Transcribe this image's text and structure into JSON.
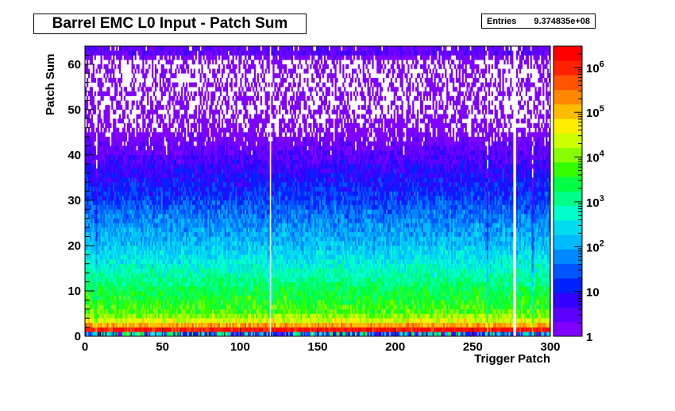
{
  "title": "Barrel EMC L0 Input - Patch Sum",
  "stats": {
    "label": "Entries",
    "value": "9.374835e+08"
  },
  "footer": "",
  "chart_data": {
    "type": "heatmap",
    "title": "Barrel EMC L0 Input - Patch Sum",
    "xlabel": "Trigger Patch",
    "ylabel": "Patch Sum",
    "xlim": [
      0,
      300
    ],
    "ylim": [
      0,
      64
    ],
    "x_ticks": [
      0,
      50,
      100,
      150,
      200,
      250,
      300
    ],
    "y_ticks": [
      0,
      10,
      20,
      30,
      40,
      50,
      60
    ],
    "z_scale": "log",
    "zlim": [
      1,
      3000000
    ],
    "z_ticks": [
      {
        "value": 1,
        "label": "1"
      },
      {
        "value": 10,
        "label": "10"
      },
      {
        "value": 100,
        "label": "10^2"
      },
      {
        "value": 1000,
        "label": "10^3"
      },
      {
        "value": 10000,
        "label": "10^4"
      },
      {
        "value": 100000,
        "label": "10^5"
      },
      {
        "value": 1000000,
        "label": "10^6"
      }
    ],
    "entries": 937483500,
    "empty_columns": [
      119,
      276,
      277
    ],
    "sparse_columns": [
      7,
      259,
      288
    ],
    "sum_profile": [
      {
        "sum": 1,
        "typical_count": 1500000
      },
      {
        "sum": 2,
        "typical_count": 150000
      },
      {
        "sum": 3,
        "typical_count": 30000
      },
      {
        "sum": 5,
        "typical_count": 6000
      },
      {
        "sum": 10,
        "typical_count": 2000
      },
      {
        "sum": 15,
        "typical_count": 500
      },
      {
        "sum": 20,
        "typical_count": 150
      },
      {
        "sum": 25,
        "typical_count": 60
      },
      {
        "sum": 30,
        "typical_count": 20
      },
      {
        "sum": 35,
        "typical_count": 8
      },
      {
        "sum": 40,
        "typical_count": 3
      },
      {
        "sum": 45,
        "typical_count": 1.5
      },
      {
        "sum": 50,
        "typical_count": 1
      },
      {
        "sum": 55,
        "typical_count": 1
      },
      {
        "sum": 60,
        "typical_count": 1
      },
      {
        "sum": 63,
        "typical_count": 5
      }
    ],
    "palette": [
      "#7f00ff",
      "#5a00ff",
      "#3300ff",
      "#0022ff",
      "#0055ff",
      "#0088ff",
      "#00bbff",
      "#00ddee",
      "#00ffcc",
      "#00ff88",
      "#00ff44",
      "#33ff00",
      "#88ff00",
      "#ccff00",
      "#ffee00",
      "#ffbb00",
      "#ff8800",
      "#ff5500",
      "#ff2200",
      "#ff0000"
    ]
  }
}
